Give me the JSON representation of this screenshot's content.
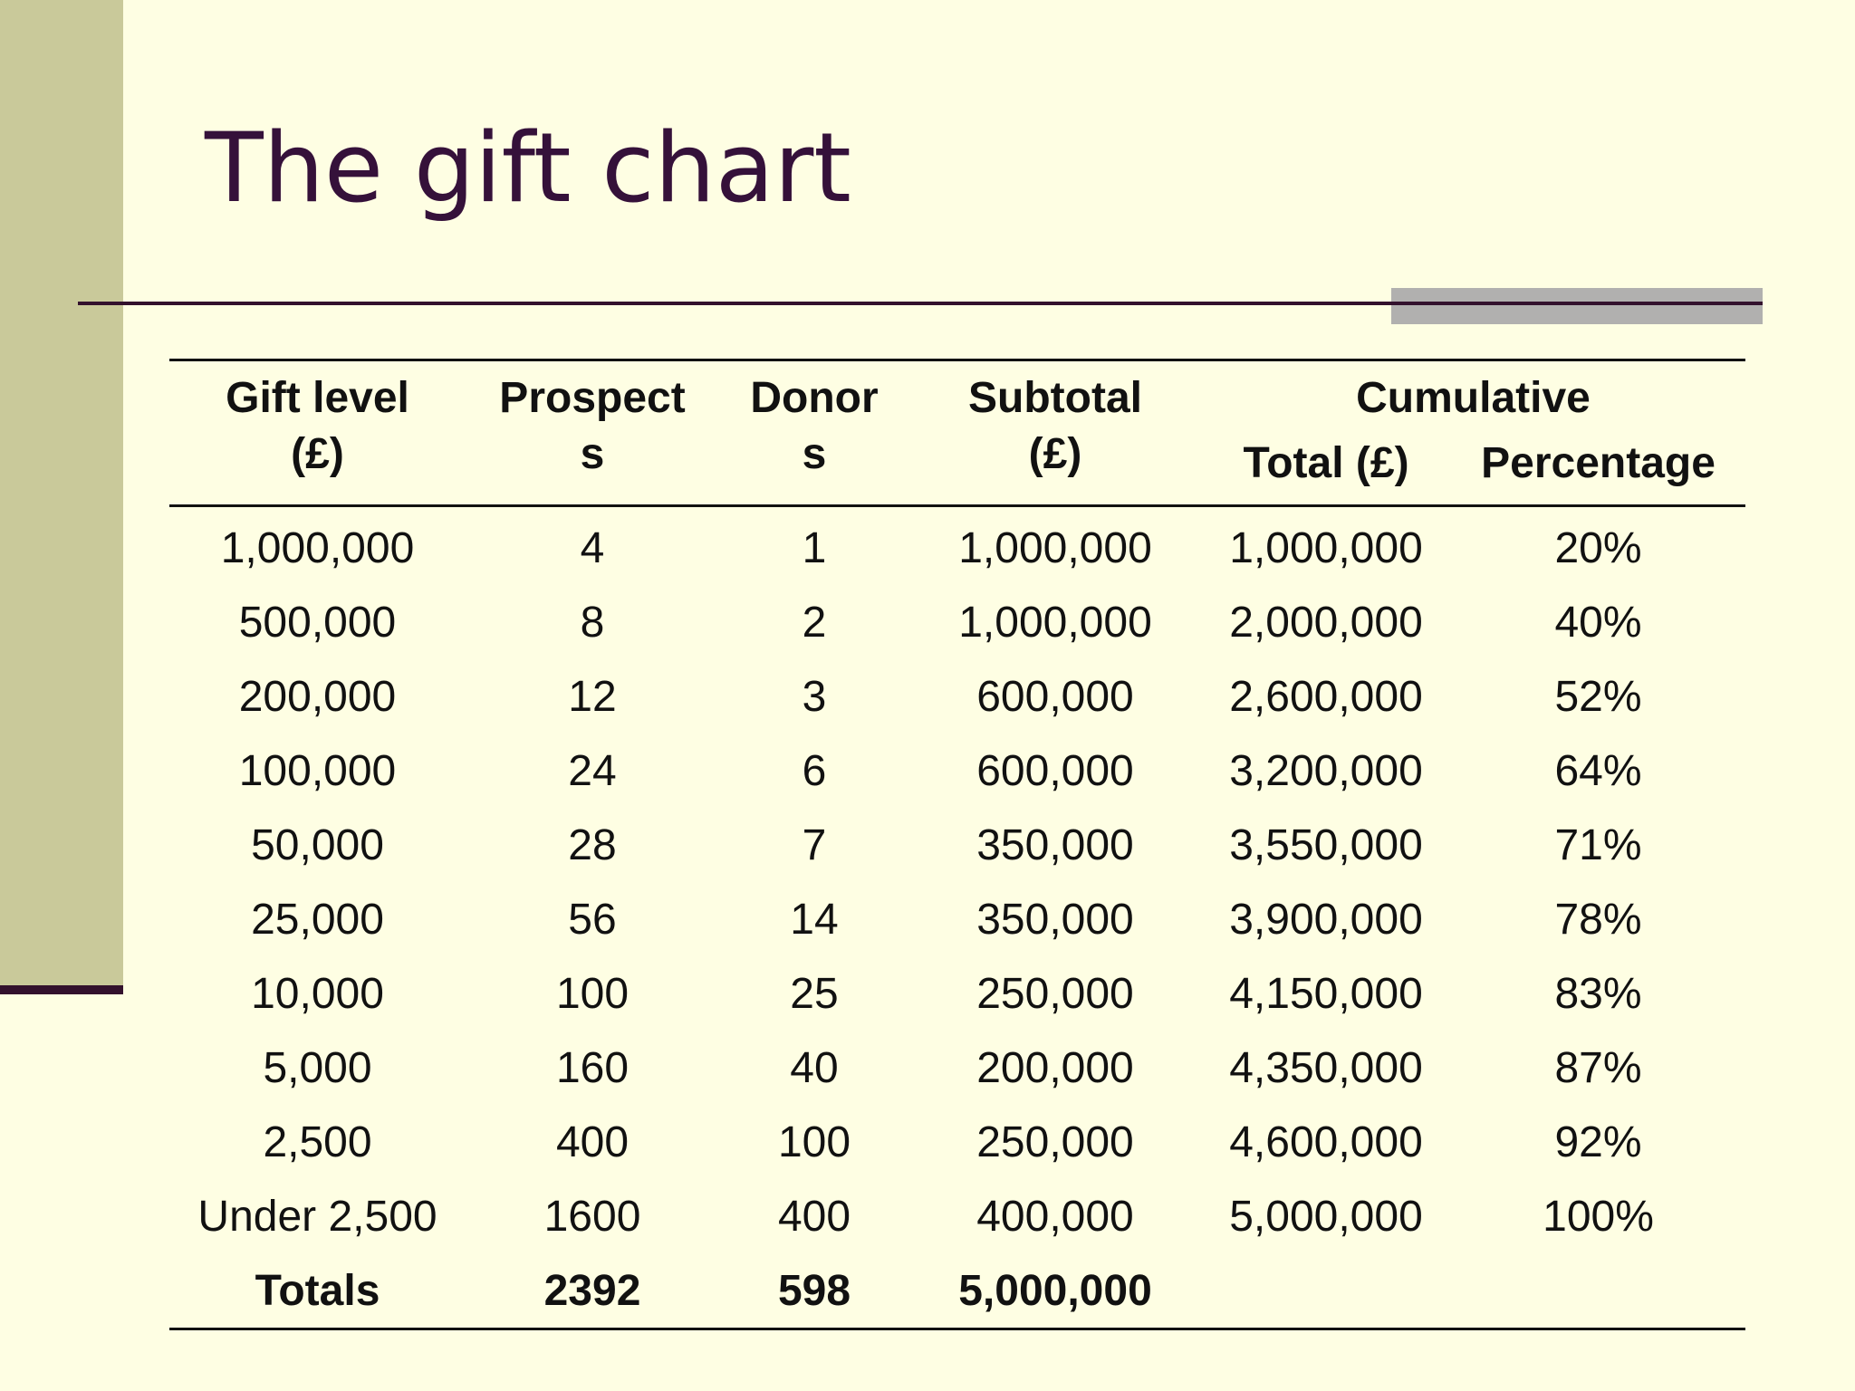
{
  "slide": {
    "title": "The gift chart"
  },
  "table": {
    "headers": {
      "gift_level": [
        "Gift level",
        "(£)"
      ],
      "prospects": [
        "Prospect",
        "s"
      ],
      "donors": [
        "Donor",
        "s"
      ],
      "subtotal": [
        "Subtotal",
        "(£)"
      ],
      "cumulative": "Cumulative",
      "cumulative_total": "Total (£)",
      "cumulative_percentage": "Percentage"
    },
    "rows": [
      {
        "gift_level": "1,000,000",
        "prospects": "4",
        "donors": "1",
        "subtotal": "1,000,000",
        "cumulative_total": "1,000,000",
        "percentage": "20%"
      },
      {
        "gift_level": "500,000",
        "prospects": "8",
        "donors": "2",
        "subtotal": "1,000,000",
        "cumulative_total": "2,000,000",
        "percentage": "40%"
      },
      {
        "gift_level": "200,000",
        "prospects": "12",
        "donors": "3",
        "subtotal": "600,000",
        "cumulative_total": "2,600,000",
        "percentage": "52%"
      },
      {
        "gift_level": "100,000",
        "prospects": "24",
        "donors": "6",
        "subtotal": "600,000",
        "cumulative_total": "3,200,000",
        "percentage": "64%"
      },
      {
        "gift_level": "50,000",
        "prospects": "28",
        "donors": "7",
        "subtotal": "350,000",
        "cumulative_total": "3,550,000",
        "percentage": "71%"
      },
      {
        "gift_level": "25,000",
        "prospects": "56",
        "donors": "14",
        "subtotal": "350,000",
        "cumulative_total": "3,900,000",
        "percentage": "78%"
      },
      {
        "gift_level": "10,000",
        "prospects": "100",
        "donors": "25",
        "subtotal": "250,000",
        "cumulative_total": "4,150,000",
        "percentage": "83%"
      },
      {
        "gift_level": "5,000",
        "prospects": "160",
        "donors": "40",
        "subtotal": "200,000",
        "cumulative_total": "4,350,000",
        "percentage": "87%"
      },
      {
        "gift_level": "2,500",
        "prospects": "400",
        "donors": "100",
        "subtotal": "250,000",
        "cumulative_total": "4,600,000",
        "percentage": "92%"
      },
      {
        "gift_level": "Under 2,500",
        "prospects": "1600",
        "donors": "400",
        "subtotal": "400,000",
        "cumulative_total": "5,000,000",
        "percentage": "100%"
      }
    ],
    "totals": {
      "label": "Totals",
      "prospects": "2392",
      "donors": "598",
      "subtotal": "5,000,000"
    }
  },
  "colors": {
    "background": "#fefee3",
    "sidebar": "#c9c99a",
    "title": "#35113a",
    "rule": "#33112d",
    "rule_block": "#b1b0af"
  }
}
